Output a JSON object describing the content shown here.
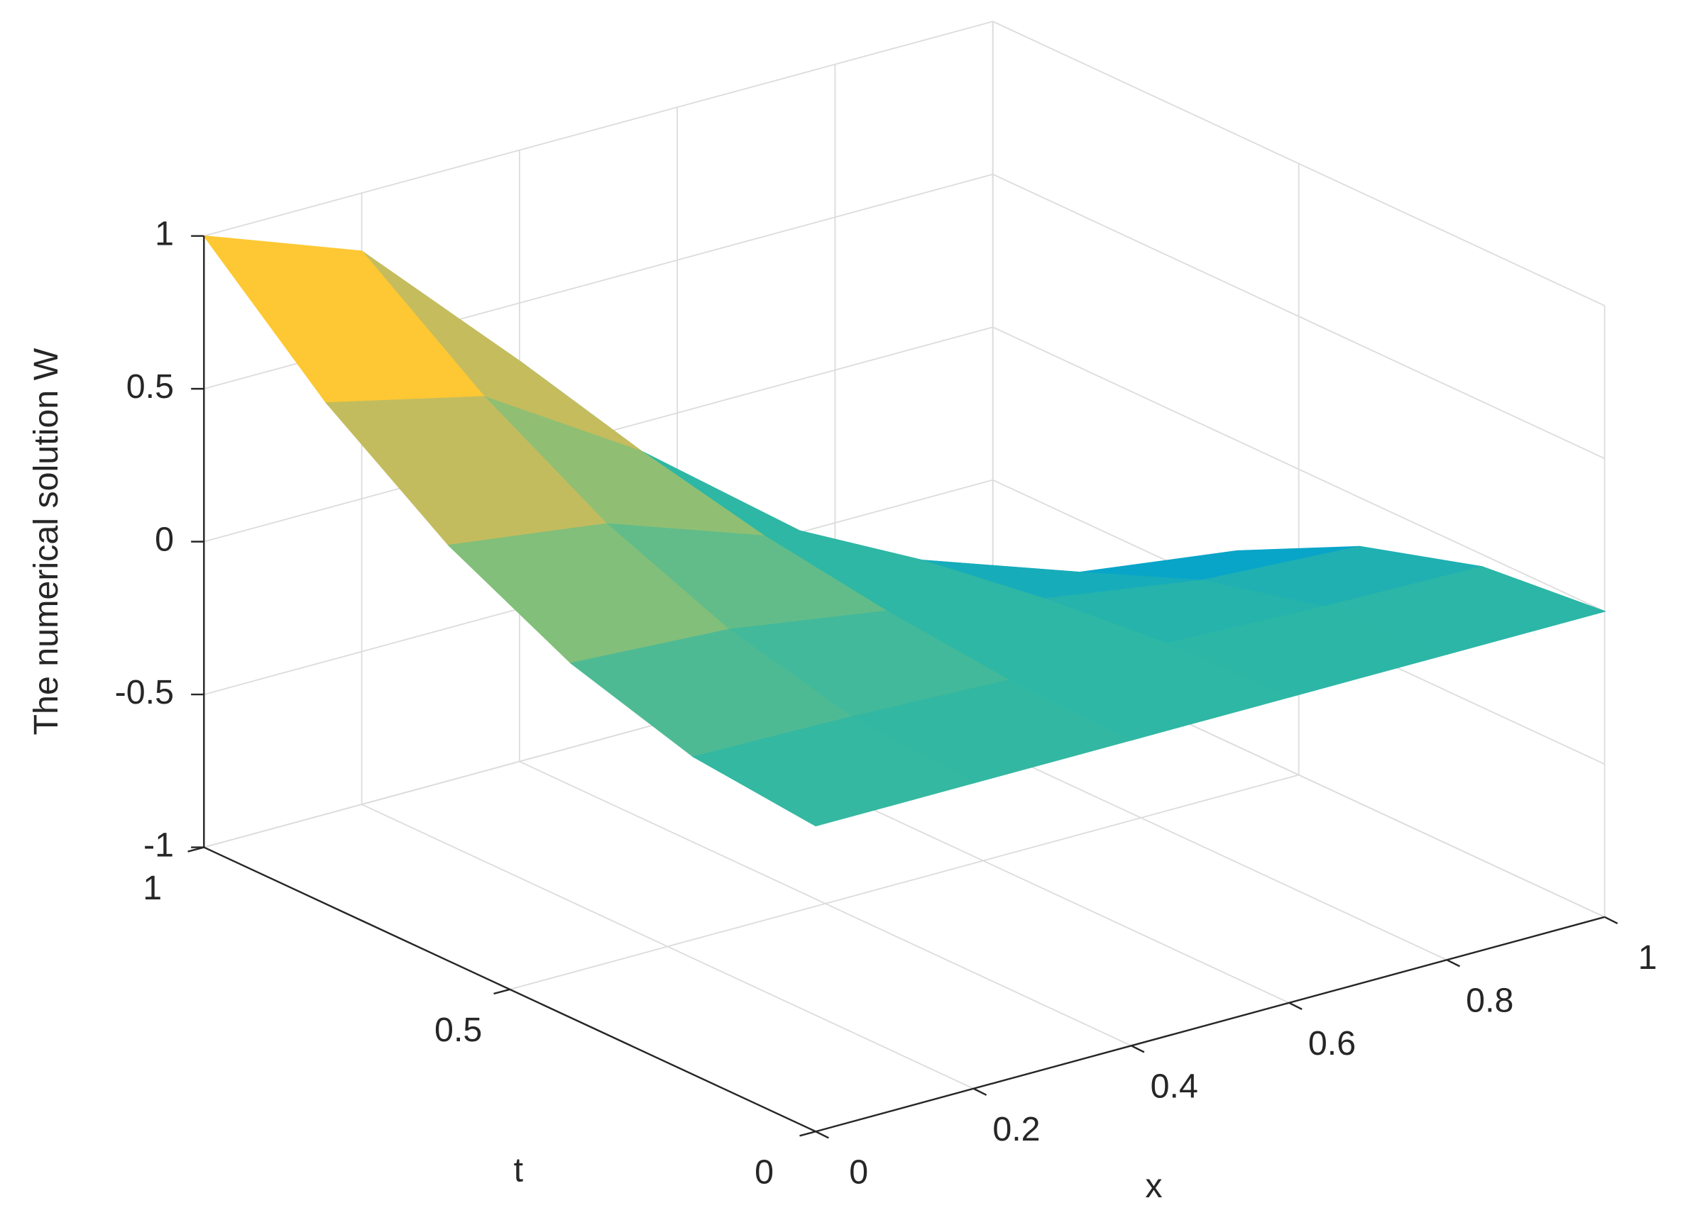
{
  "chart_data": {
    "type": "surface",
    "zlabel": "The numerical solution W",
    "xlabel": "x",
    "ylabel": "t",
    "x": [
      0,
      0.2,
      0.4,
      0.6,
      0.8,
      1
    ],
    "y": [
      0,
      0.2,
      0.4,
      0.6,
      0.8,
      1
    ],
    "z": [
      [
        0,
        0,
        0,
        0,
        0,
        0
      ],
      [
        0.04,
        0.03,
        0.01,
        -0.01,
        -0.03,
        -0.04
      ],
      [
        0.16,
        0.13,
        0.05,
        -0.05,
        -0.13,
        -0.16
      ],
      [
        0.36,
        0.29,
        0.11,
        -0.11,
        -0.29,
        -0.36
      ],
      [
        0.64,
        0.52,
        0.2,
        -0.2,
        -0.52,
        -0.64
      ],
      [
        1,
        0.81,
        0.31,
        -0.31,
        -0.81,
        -1
      ]
    ],
    "xlim": [
      0,
      1
    ],
    "xticks": [
      0,
      0.2,
      0.4,
      0.6,
      0.8,
      1
    ],
    "ylim": [
      0,
      1
    ],
    "yticks": [
      0,
      0.5,
      1
    ],
    "zlim": [
      -1,
      1
    ],
    "zticks": [
      -1,
      -0.5,
      0,
      0.5,
      1
    ],
    "grid": true,
    "colormap": [
      "#352a87",
      "#0f5cdd",
      "#1481d6",
      "#06a4ca",
      "#2eb7a4",
      "#87bf77",
      "#d1bb59",
      "#fec832",
      "#f9fb0e"
    ]
  }
}
